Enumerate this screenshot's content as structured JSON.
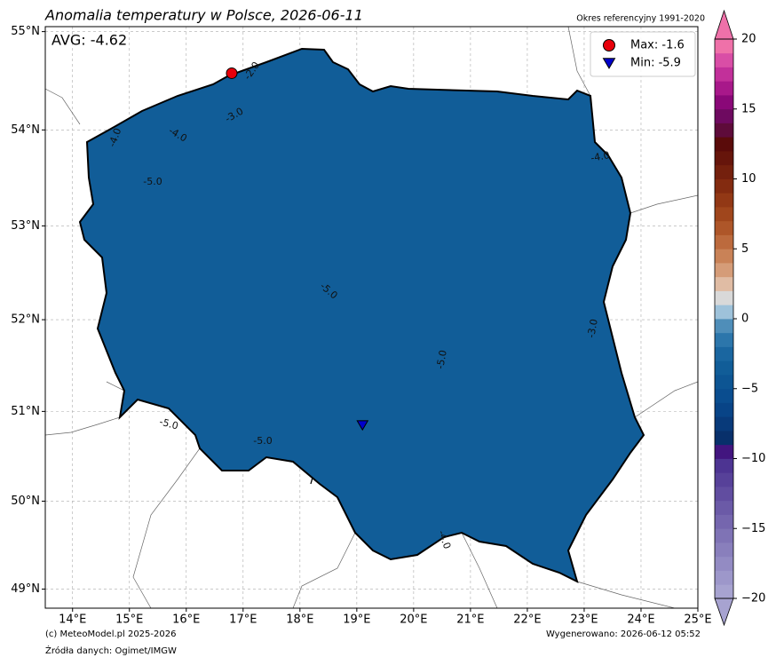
{
  "title": "Anomalia temperatury w Polsce, 2026-06-11",
  "reference": "Okres referencyjny 1991-2020",
  "avg_label": "AVG: -4.62",
  "map": {
    "xlim": [
      13.52,
      25.0
    ],
    "ylim": [
      48.78,
      55.05
    ],
    "xticks": [
      {
        "value": 14,
        "label": "14°E"
      },
      {
        "value": 15,
        "label": "15°E"
      },
      {
        "value": 16,
        "label": "16°E"
      },
      {
        "value": 17,
        "label": "17°E"
      },
      {
        "value": 18,
        "label": "18°E"
      },
      {
        "value": 19,
        "label": "19°E"
      },
      {
        "value": 20,
        "label": "20°E"
      },
      {
        "value": 21,
        "label": "21°E"
      },
      {
        "value": 22,
        "label": "22°E"
      },
      {
        "value": 23,
        "label": "23°E"
      },
      {
        "value": 24,
        "label": "24°E"
      },
      {
        "value": 25,
        "label": "25°E"
      }
    ],
    "yticks": [
      {
        "value": 49,
        "label": "49°N"
      },
      {
        "value": 50,
        "label": "50°N"
      },
      {
        "value": 51,
        "label": "51°N"
      },
      {
        "value": 52,
        "label": "52°N"
      },
      {
        "value": 53,
        "label": "53°N"
      },
      {
        "value": 54,
        "label": "54°N"
      },
      {
        "value": 55,
        "label": "55°N"
      }
    ],
    "grid": true,
    "markers": [
      {
        "label": "Max: -1.6",
        "lon": 16.8,
        "lat": 54.58,
        "color": "#e8000b",
        "shape": "circle"
      },
      {
        "label": "Min: -5.9",
        "lon": 19.1,
        "lat": 50.85,
        "color": "#0000cc",
        "shape": "triangle"
      }
    ],
    "contour_labels": [
      "-5.0",
      "-4.0",
      "-3.0",
      "-2.0"
    ]
  },
  "colorbar": {
    "clim": [
      -20,
      20
    ],
    "ticks": [
      {
        "value": -20,
        "label": "−20"
      },
      {
        "value": -15,
        "label": "−15"
      },
      {
        "value": -10,
        "label": "−10"
      },
      {
        "value": -5,
        "label": "−5"
      },
      0,
      5,
      10,
      15,
      20
    ],
    "colors": [
      "#a7a3d0",
      "#9d97ca",
      "#938bc3",
      "#897fbc",
      "#7f73b5",
      "#7566ae",
      "#6b5aa7",
      "#614da0",
      "#574199",
      "#4d3492",
      "#42157f",
      "#08306b",
      "#083a7a",
      "#084487",
      "#0a4d8f",
      "#0d5593",
      "#115d98",
      "#1a66a0",
      "#2c76ab",
      "#4f8eb9",
      "#9ec2da",
      "#d9d9d9",
      "#e0bca4",
      "#d59c78",
      "#c98257",
      "#bc6a3d",
      "#ae5629",
      "#a0461c",
      "#923815",
      "#832b10",
      "#74200d",
      "#66150b",
      "#5a0b0a",
      "#5e0b3a",
      "#6e0a60",
      "#8a0878",
      "#a8188a",
      "#c2309a",
      "#d94ea6",
      "#ef71a9"
    ]
  },
  "footer": {
    "copyright": "(c) MeteoModel.pl 2025-2026",
    "generated": "Wygenerowano: 2026-06-12 05:52",
    "sources": "Źródła danych: Ogimet/IMGW"
  }
}
